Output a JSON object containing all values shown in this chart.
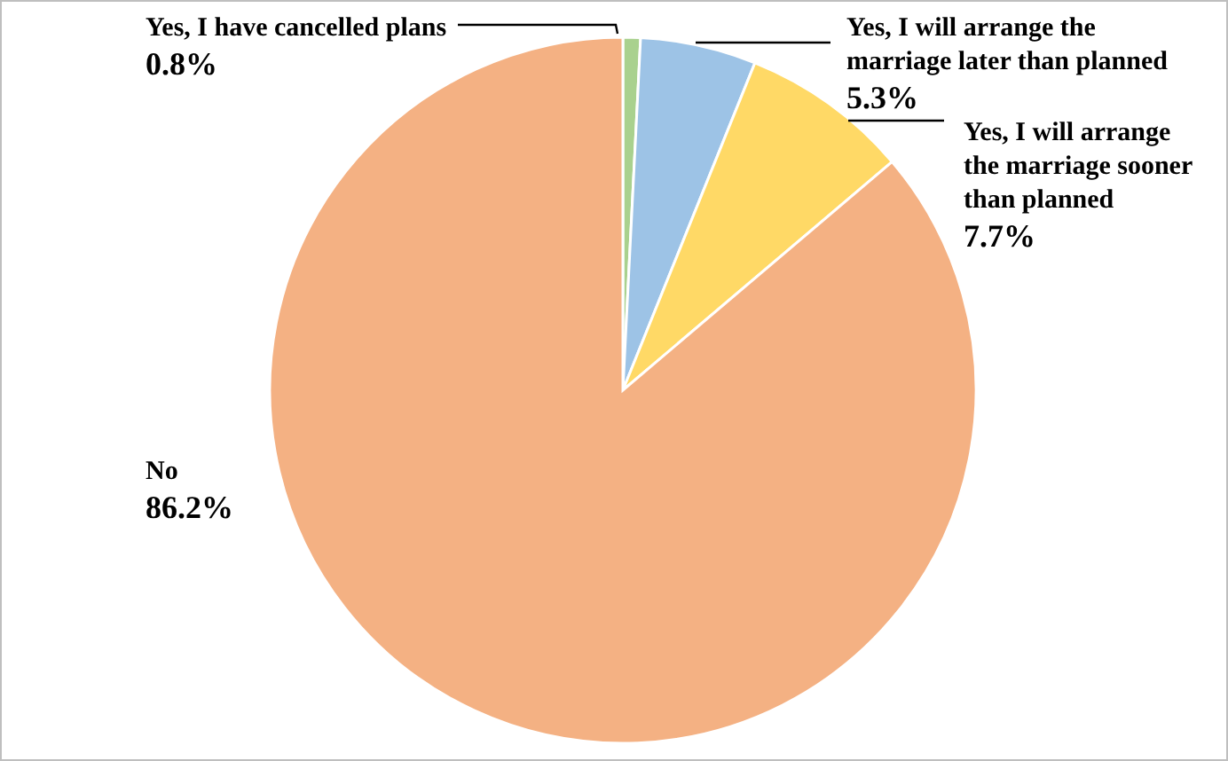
{
  "chart_data": {
    "type": "pie",
    "categories": [
      "Yes, I have cancelled plans",
      "Yes, I will arrange the marriage later than planned",
      "Yes, I will arrange the marriage sooner than planned",
      "No"
    ],
    "values": [
      0.8,
      5.3,
      7.7,
      86.2
    ],
    "value_labels": [
      "0.8%",
      "5.3%",
      "7.7%",
      "86.2%"
    ],
    "colors": [
      "#a9d18e",
      "#9dc3e6",
      "#ffd966",
      "#f4b183"
    ],
    "legend": false
  }
}
